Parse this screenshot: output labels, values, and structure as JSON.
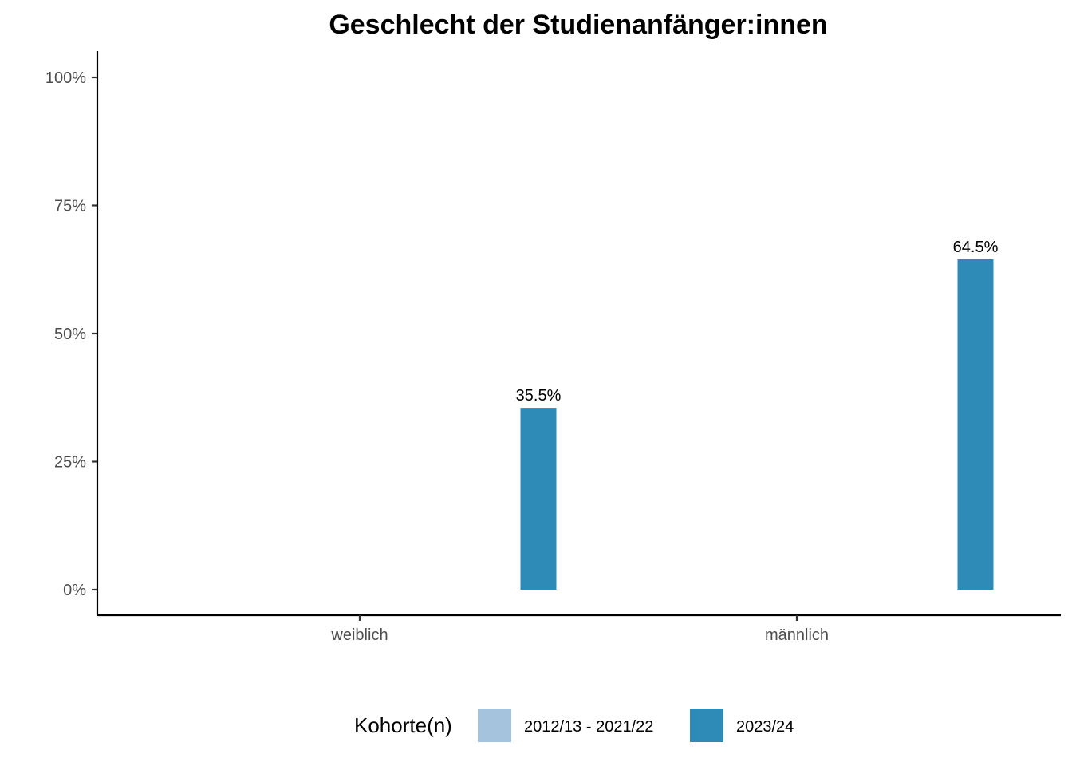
{
  "chart_data": {
    "type": "bar",
    "title": "Geschlecht der Studienanfänger:innen",
    "categories": [
      "weiblich",
      "männlich"
    ],
    "series": [
      {
        "name": "2012/13 - 2021/22",
        "color": "#a6c3de",
        "values": [
          null,
          null
        ]
      },
      {
        "name": "2023/24",
        "color": "#2e8bb8",
        "values": [
          35.5,
          64.5
        ]
      }
    ],
    "data_labels": [
      "35.5%",
      "64.5%"
    ],
    "ylim": [
      0,
      100
    ],
    "y_ticks": [
      0,
      25,
      50,
      75,
      100
    ],
    "y_tick_labels": [
      "0%",
      "25%",
      "50%",
      "75%",
      "100%"
    ],
    "legend": {
      "title": "Kohorte(n)",
      "position": "bottom"
    },
    "grid": false
  }
}
